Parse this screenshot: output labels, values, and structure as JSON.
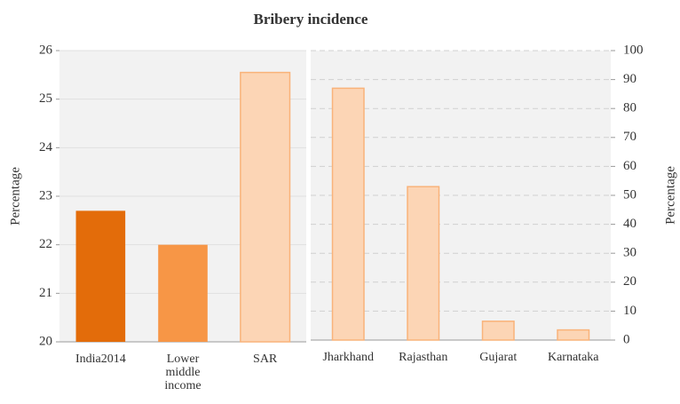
{
  "chart_data": [
    {
      "type": "bar",
      "title": "Bribery incidence",
      "categories": [
        "India2014",
        "Lower middle income",
        "SAR"
      ],
      "values": [
        22.7,
        22.0,
        25.55
      ],
      "colors": [
        "#e36c0a",
        "#f79646",
        "#fcd5b5"
      ],
      "ylim": [
        20,
        26
      ],
      "yticks": [
        20,
        21,
        22,
        23,
        24,
        25,
        26
      ],
      "y_label": "Percentage",
      "grid": true
    },
    {
      "type": "bar",
      "categories": [
        "Jharkhand",
        "Rajasthan",
        "Gujarat",
        "Karnataka"
      ],
      "values": [
        87,
        53,
        6.5,
        3.5
      ],
      "colors": [
        "#fcd5b5",
        "#fcd5b5",
        "#fcd5b5",
        "#fcd5b5"
      ],
      "ylim": [
        0,
        100
      ],
      "yticks": [
        0,
        10,
        20,
        30,
        40,
        50,
        60,
        70,
        80,
        90,
        100
      ],
      "y_label": "Percentage",
      "grid": true
    }
  ]
}
